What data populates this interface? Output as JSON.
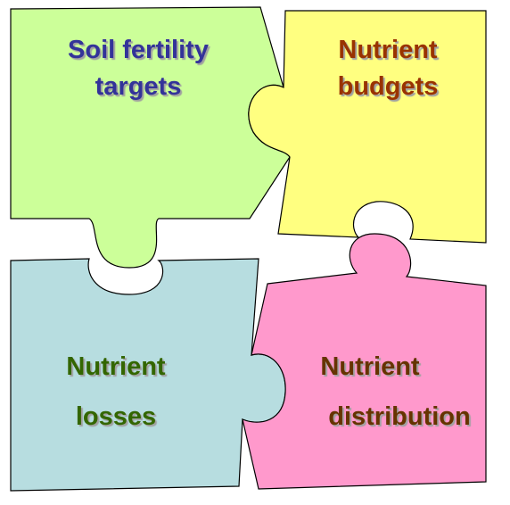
{
  "pieces": [
    {
      "label": [
        "Soil fertility",
        "targets"
      ]
    },
    {
      "label": [
        "Nutrient",
        "budgets"
      ]
    },
    {
      "label": [
        "Nutrient",
        "losses"
      ]
    },
    {
      "label": [
        "Nutrient",
        "distribution"
      ]
    }
  ]
}
